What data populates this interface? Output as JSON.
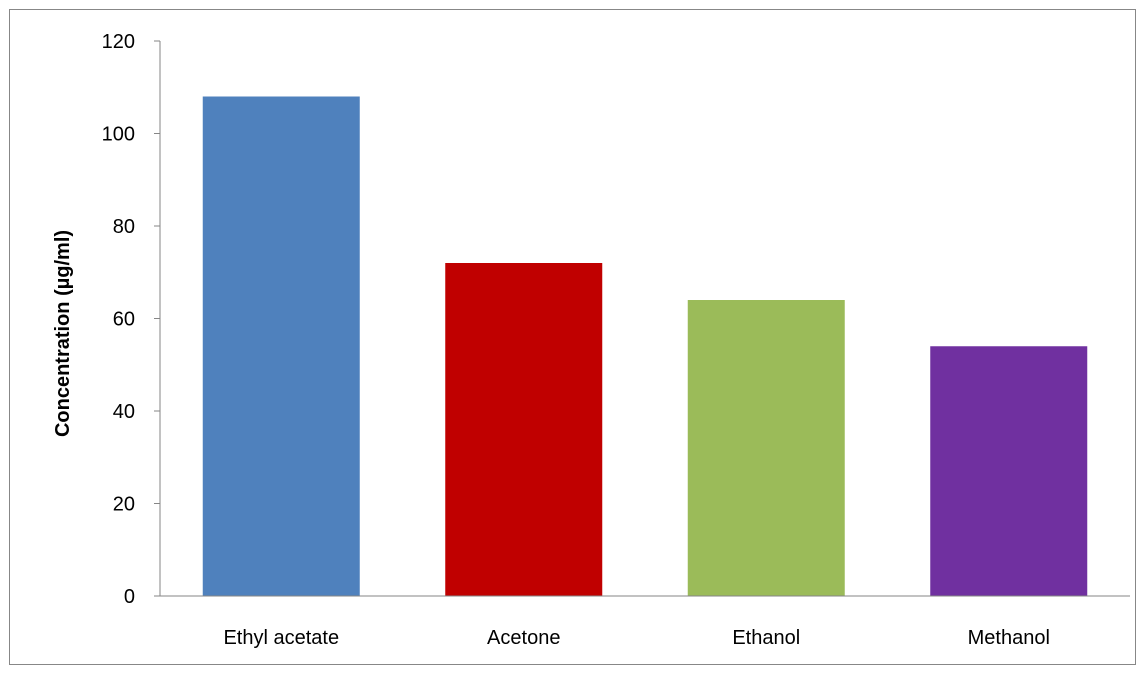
{
  "chart_data": {
    "type": "bar",
    "title": "",
    "xlabel": "",
    "ylabel": "Concentration (µg/ml)",
    "categories": [
      "Ethyl acetate",
      "Acetone",
      "Ethanol",
      "Methanol"
    ],
    "values": [
      108,
      72,
      64,
      54
    ],
    "colors": [
      "#4F81BD",
      "#C00000",
      "#9BBB59",
      "#7030A0"
    ],
    "ylim": [
      0,
      120
    ],
    "yticks": [
      0,
      20,
      40,
      60,
      80,
      100,
      120
    ],
    "grid": false,
    "legend": "none"
  }
}
